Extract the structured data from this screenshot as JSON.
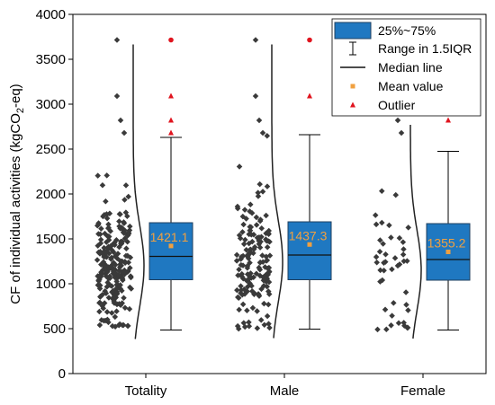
{
  "chart_data": {
    "type": "box",
    "ylabel_parts": [
      "CF of individual activities (kgCO",
      "2",
      "-eq)"
    ],
    "ylim": [
      0,
      4000
    ],
    "yticks": [
      0,
      500,
      1000,
      1500,
      2000,
      2500,
      3000,
      3500,
      4000
    ],
    "categories": [
      "Totality",
      "Male",
      "Female"
    ],
    "colors": {
      "box": "#1f78c1",
      "box_edge": "#1f3f5f",
      "scatter": "#3a3a3a",
      "mean_marker": "#f0a040",
      "mean_label": "#f0a040",
      "outlier": "#e0141e",
      "outlier_triangle": "#e0141e"
    },
    "groups": [
      {
        "name": "Totality",
        "q1": 1045,
        "median": 1305,
        "q3": 1680,
        "mean": 1421.1,
        "whisker_low": 485,
        "whisker_high": 2630,
        "mean_label": "1421.1",
        "outliers_circle": [
          3715
        ],
        "outliers_triangle": [
          3090,
          2820,
          2680
        ],
        "scatter_range": [
          485,
          3715
        ],
        "distribution_peak": 1200
      },
      {
        "name": "Male",
        "q1": 1045,
        "median": 1320,
        "q3": 1690,
        "mean": 1437.3,
        "whisker_low": 495,
        "whisker_high": 2660,
        "mean_label": "1437.3",
        "outliers_circle": [
          3715
        ],
        "outliers_triangle": [
          3090
        ],
        "scatter_range": [
          495,
          3715
        ],
        "distribution_peak": 1250
      },
      {
        "name": "Female",
        "q1": 1040,
        "median": 1270,
        "q3": 1670,
        "mean": 1355.2,
        "whisker_low": 485,
        "whisker_high": 2475,
        "mean_label": "1355.2",
        "outliers_circle": [],
        "outliers_triangle": [
          2820
        ],
        "scatter_range": [
          490,
          2820
        ],
        "distribution_peak": 1150
      }
    ],
    "legend": {
      "placement": "top-right",
      "entries": [
        {
          "label": "25%~75%",
          "symbol": "box"
        },
        {
          "label": "Range in 1.5IQR",
          "symbol": "whisker"
        },
        {
          "label": "Median line",
          "symbol": "line"
        },
        {
          "label": "Mean value",
          "symbol": "square"
        },
        {
          "label": "Outlier",
          "symbol": "triangle"
        }
      ]
    }
  }
}
